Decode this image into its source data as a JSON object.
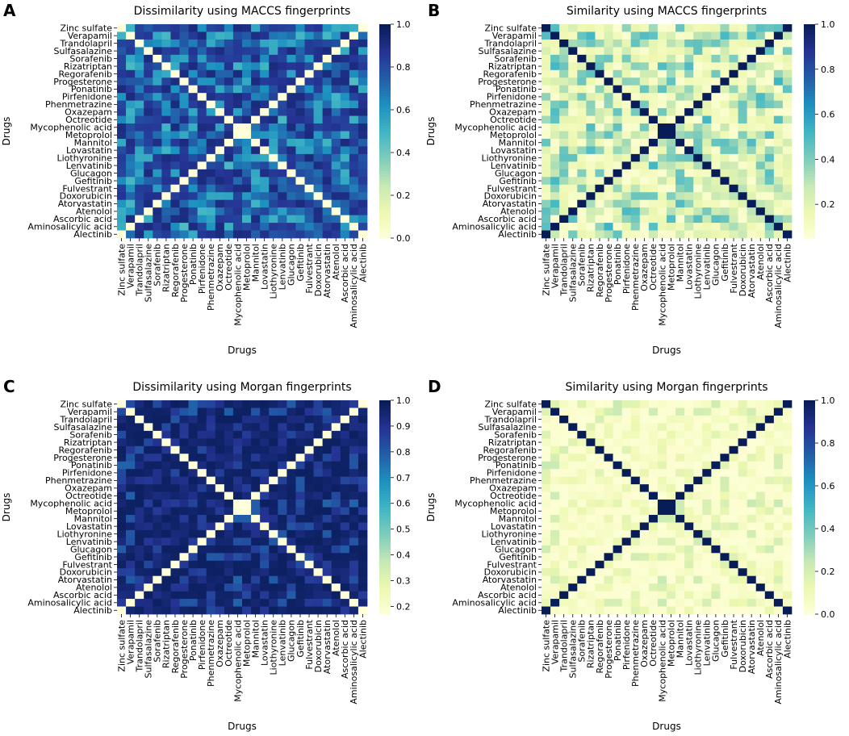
{
  "figure": {
    "drugs": [
      "Zinc sulfate",
      "Verapamil",
      "Trandolapril",
      "Sulfasalazine",
      "Sorafenib",
      "Rizatriptan",
      "Regorafenib",
      "Progesterone",
      "Ponatinib",
      "Pirfenidone",
      "Phenmetrazine",
      "Oxazepam",
      "Octreotide",
      "Mycophenolic acid",
      "Metoprolol",
      "Mannitol",
      "Lovastatin",
      "Liothyronine",
      "Lenvatinib",
      "Glucagon",
      "Gefitinib",
      "Fulvestrant",
      "Doxorubicin",
      "Atorvastatin",
      "Atenolol",
      "Ascorbic acid",
      "Aminosalicylic acid",
      "Alectinib"
    ],
    "colormap": "YlGnBu",
    "colormap_stops": [
      "#ffffd9",
      "#edf8b1",
      "#c7e9b4",
      "#7fcdbb",
      "#41b6c4",
      "#1d91c0",
      "#225ea8",
      "#253494",
      "#081d58"
    ]
  },
  "chart_data": [
    {
      "panel": "A",
      "type": "heatmap",
      "title": "Dissimilarity using MACCS fingerprints",
      "xlabel": "Drugs",
      "ylabel": "Drugs",
      "metric": "dissimilarity",
      "fingerprint": "MACCS",
      "vmin": 0.0,
      "vmax": 1.0,
      "colorbar_ticks": [
        "0.0",
        "0.2",
        "0.4",
        "0.6",
        "0.8",
        "1.0"
      ],
      "cell_values": "28x28 matrix over figure.drugs (rows top-to-bottom, columns left-to-right); zero on main diagonal and anti-diagonal, mostly 0.6-0.95 elsewhere"
    },
    {
      "panel": "B",
      "type": "heatmap",
      "title": "Similarity using MACCS fingerprints",
      "xlabel": "Drugs",
      "ylabel": "Drugs",
      "metric": "similarity",
      "fingerprint": "MACCS",
      "vmin": 0.05,
      "vmax": 1.0,
      "colorbar_ticks": [
        "0.2",
        "0.4",
        "0.6",
        "0.8",
        "1.0"
      ],
      "cell_values": "1 - dissimilarity of panel A; 1.0 on main diagonal and anti-diagonal, mostly 0.1-0.4 elsewhere"
    },
    {
      "panel": "C",
      "type": "heatmap",
      "title": "Dissimilarity using Morgan fingerprints",
      "xlabel": "Drugs",
      "ylabel": "Drugs",
      "metric": "dissimilarity",
      "fingerprint": "Morgan",
      "vmin": 0.17,
      "vmax": 1.0,
      "colorbar_ticks": [
        "0.2",
        "0.3",
        "0.4",
        "0.5",
        "0.6",
        "0.7",
        "0.8",
        "0.9",
        "1.0"
      ],
      "cell_values": "minimum on main diagonal and anti-diagonal, mostly 0.8-1.0 elsewhere"
    },
    {
      "panel": "D",
      "type": "heatmap",
      "title": "Similarity using Morgan fingerprints",
      "xlabel": "Drugs",
      "ylabel": "Drugs",
      "metric": "similarity",
      "fingerprint": "Morgan",
      "vmin": 0.0,
      "vmax": 1.0,
      "colorbar_ticks": [
        "0.0",
        "0.2",
        "0.4",
        "0.6",
        "0.8",
        "1.0"
      ],
      "cell_values": "1.0 on main diagonal and anti-diagonal, mostly 0.0-0.2 elsewhere"
    }
  ]
}
